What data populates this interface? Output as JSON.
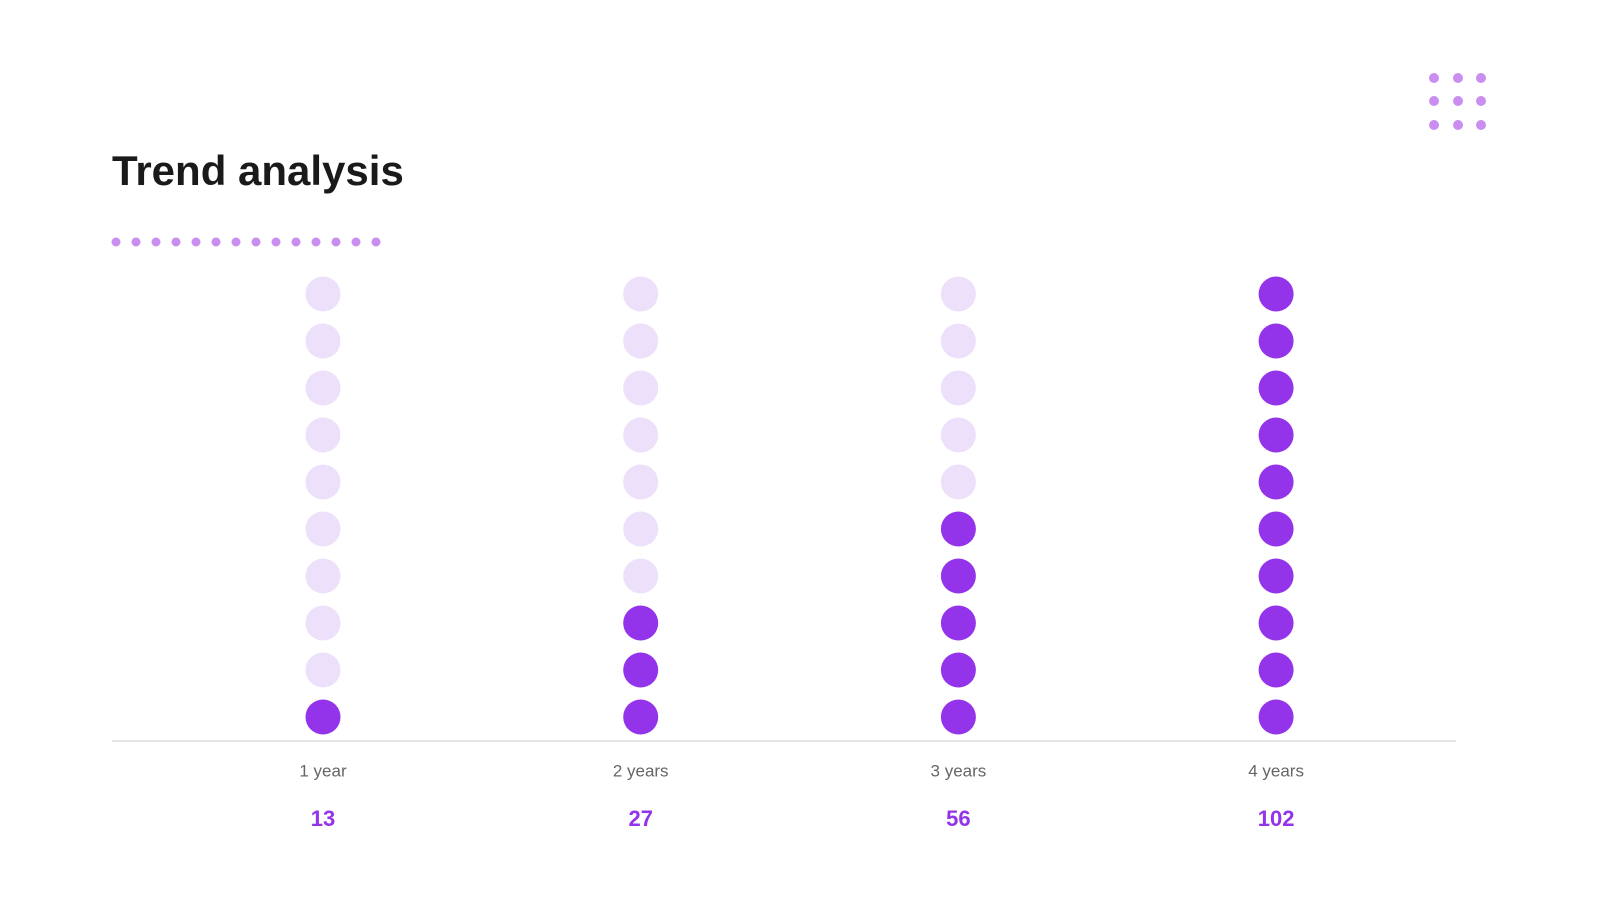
{
  "chart_data": {
    "type": "dotcolumn",
    "title": "Trend analysis",
    "categories": [
      "1 year",
      "2 years",
      "3 years",
      "4 years"
    ],
    "values": [
      13,
      27,
      56,
      102
    ],
    "ylim": [
      0,
      102
    ],
    "dots_per_column": 10,
    "color": "#9333ea",
    "track_color": "#ede0fa"
  }
}
